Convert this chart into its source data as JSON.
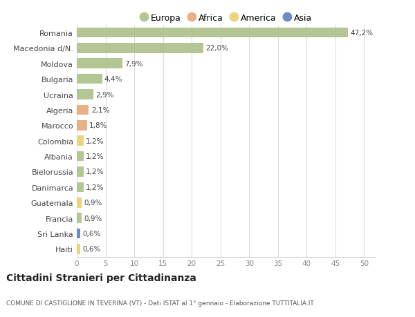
{
  "categories": [
    "Romania",
    "Macedonia d/N.",
    "Moldova",
    "Bulgaria",
    "Ucraina",
    "Algeria",
    "Marocco",
    "Colombia",
    "Albania",
    "Bielorussia",
    "Danimarca",
    "Guatemala",
    "Francia",
    "Sri Lanka",
    "Haiti"
  ],
  "values": [
    47.2,
    22.0,
    7.9,
    4.4,
    2.9,
    2.1,
    1.8,
    1.2,
    1.2,
    1.2,
    1.2,
    0.9,
    0.9,
    0.6,
    0.6
  ],
  "labels": [
    "47,2%",
    "22,0%",
    "7,9%",
    "4,4%",
    "2,9%",
    "2,1%",
    "1,8%",
    "1,2%",
    "1,2%",
    "1,2%",
    "1,2%",
    "0,9%",
    "0,9%",
    "0,6%",
    "0,6%"
  ],
  "continents": [
    "Europa",
    "Europa",
    "Europa",
    "Europa",
    "Europa",
    "Africa",
    "Africa",
    "America",
    "Europa",
    "Europa",
    "Europa",
    "America",
    "Europa",
    "Asia",
    "America"
  ],
  "continent_colors": {
    "Europa": "#adc08a",
    "Africa": "#e8a878",
    "America": "#e8d070",
    "Asia": "#6080c0"
  },
  "legend_items": [
    "Europa",
    "Africa",
    "America",
    "Asia"
  ],
  "title": "Cittadini Stranieri per Cittadinanza",
  "subtitle": "COMUNE DI CASTIGLIONE IN TEVERINA (VT) - Dati ISTAT al 1° gennaio - Elaborazione TUTTITALIA.IT",
  "xlim": [
    0,
    52
  ],
  "xticks": [
    0,
    5,
    10,
    15,
    20,
    25,
    30,
    35,
    40,
    45,
    50
  ],
  "background_color": "#ffffff",
  "grid_color": "#dddddd"
}
